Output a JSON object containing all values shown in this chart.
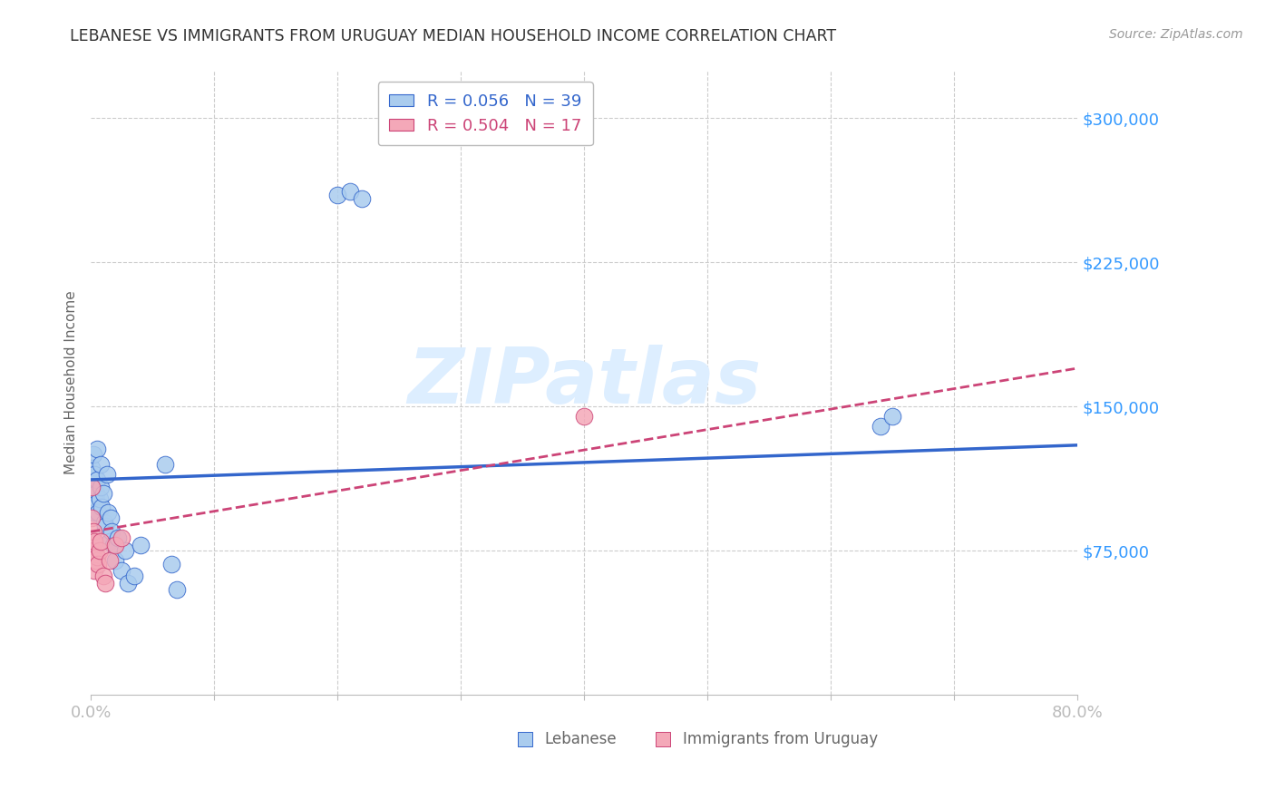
{
  "title": "LEBANESE VS IMMIGRANTS FROM URUGUAY MEDIAN HOUSEHOLD INCOME CORRELATION CHART",
  "source": "Source: ZipAtlas.com",
  "ylabel": "Median Household Income",
  "xlim": [
    0.0,
    0.8
  ],
  "ylim": [
    0,
    325000
  ],
  "yticks": [
    0,
    75000,
    150000,
    225000,
    300000
  ],
  "ytick_labels": [
    "",
    "$75,000",
    "$150,000",
    "$225,000",
    "$300,000"
  ],
  "xticks": [
    0.0,
    0.1,
    0.2,
    0.3,
    0.4,
    0.5,
    0.6,
    0.7,
    0.8
  ],
  "xtick_labels_show": [
    "0.0%",
    "",
    "",
    "",
    "",
    "",
    "",
    "",
    "80.0%"
  ],
  "watermark": "ZIPatlas",
  "lebanese_scatter_x": [
    0.001,
    0.001,
    0.002,
    0.002,
    0.003,
    0.003,
    0.004,
    0.005,
    0.005,
    0.005,
    0.006,
    0.007,
    0.008,
    0.008,
    0.009,
    0.01,
    0.011,
    0.012,
    0.013,
    0.014,
    0.015,
    0.016,
    0.017,
    0.018,
    0.02,
    0.022,
    0.025,
    0.028,
    0.03,
    0.035,
    0.04,
    0.06,
    0.065,
    0.07,
    0.2,
    0.21,
    0.22,
    0.64,
    0.65
  ],
  "lebanese_scatter_y": [
    118000,
    110000,
    125000,
    108000,
    115000,
    95000,
    105000,
    128000,
    112000,
    100000,
    95000,
    102000,
    120000,
    108000,
    98000,
    105000,
    90000,
    88000,
    115000,
    95000,
    80000,
    92000,
    85000,
    78000,
    70000,
    82000,
    65000,
    75000,
    58000,
    62000,
    78000,
    120000,
    68000,
    55000,
    260000,
    262000,
    258000,
    140000,
    145000
  ],
  "uruguay_scatter_x": [
    0.001,
    0.001,
    0.002,
    0.002,
    0.003,
    0.003,
    0.004,
    0.005,
    0.006,
    0.007,
    0.008,
    0.01,
    0.012,
    0.015,
    0.02,
    0.025,
    0.4
  ],
  "uruguay_scatter_y": [
    108000,
    92000,
    85000,
    75000,
    80000,
    65000,
    70000,
    72000,
    68000,
    75000,
    80000,
    62000,
    58000,
    70000,
    78000,
    82000,
    145000
  ],
  "leb_line_x0": 0.0,
  "leb_line_y0": 112000,
  "leb_line_x1": 0.8,
  "leb_line_y1": 130000,
  "uru_line_x0": 0.0,
  "uru_line_y0": 85000,
  "uru_line_x1": 0.8,
  "uru_line_y1": 170000,
  "lebanese_line_color": "#3366cc",
  "uruguay_line_color": "#cc4477",
  "scatter_blue": "#aaccee",
  "scatter_pink": "#f4a8b8",
  "grid_color": "#cccccc",
  "title_color": "#333333",
  "axis_label_color": "#666666",
  "ytick_color": "#3399ff",
  "xtick_color": "#3399ff",
  "source_color": "#999999",
  "watermark_color": "#ddeeff",
  "background_color": "#ffffff"
}
